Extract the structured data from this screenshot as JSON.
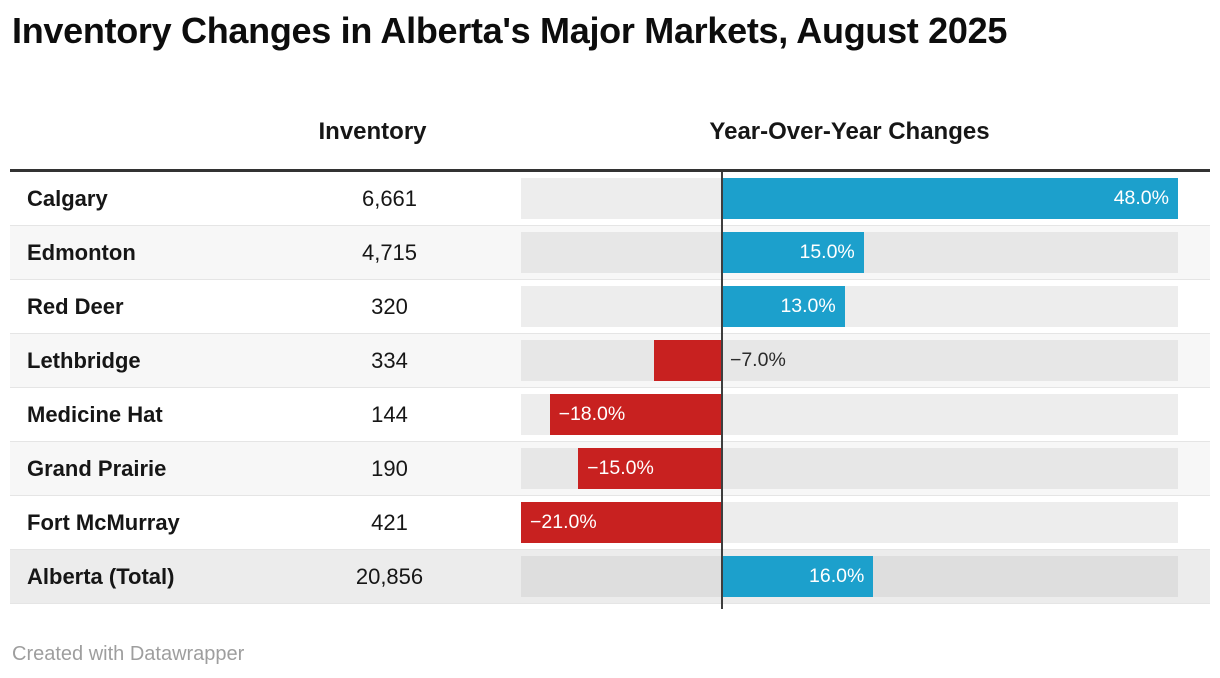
{
  "title": "Inventory Changes in Alberta's Major Markets, August 2025",
  "columns": {
    "inventory_header": "Inventory",
    "yoy_header": "Year-Over-Year Changes"
  },
  "footer": "Created with Datawrapper",
  "colors": {
    "positive_bar": "#1ca0cc",
    "negative_bar": "#c82120",
    "axis_line": "#3e3e3e",
    "track": "#ededed",
    "total_row_bg": "#ececec"
  },
  "rows": [
    {
      "name": "Calgary",
      "inventory": "6,661",
      "yoy": 48.0,
      "yoy_label": "48.0%"
    },
    {
      "name": "Edmonton",
      "inventory": "4,715",
      "yoy": 15.0,
      "yoy_label": "15.0%"
    },
    {
      "name": "Red Deer",
      "inventory": "320",
      "yoy": 13.0,
      "yoy_label": "13.0%"
    },
    {
      "name": "Lethbridge",
      "inventory": "334",
      "yoy": -7.0,
      "yoy_label": "−7.0%"
    },
    {
      "name": "Medicine Hat",
      "inventory": "144",
      "yoy": -18.0,
      "yoy_label": "−18.0%"
    },
    {
      "name": "Grand Prairie",
      "inventory": "190",
      "yoy": -15.0,
      "yoy_label": "−15.0%"
    },
    {
      "name": "Fort McMurray",
      "inventory": "421",
      "yoy": -21.0,
      "yoy_label": "−21.0%"
    },
    {
      "name": "Alberta (Total)",
      "inventory": "20,856",
      "yoy": 16.0,
      "yoy_label": "16.0%",
      "total": true
    }
  ],
  "chart_data": {
    "type": "bar",
    "title": "Inventory Changes in Alberta's Major Markets, August 2025",
    "categories": [
      "Calgary",
      "Edmonton",
      "Red Deer",
      "Lethbridge",
      "Medicine Hat",
      "Grand Prairie",
      "Fort McMurray",
      "Alberta (Total)"
    ],
    "series": [
      {
        "name": "Inventory",
        "values": [
          6661,
          4715,
          320,
          334,
          144,
          190,
          421,
          20856
        ]
      },
      {
        "name": "Year-Over-Year Changes (%)",
        "values": [
          48.0,
          15.0,
          13.0,
          -7.0,
          -18.0,
          -15.0,
          -21.0,
          16.0
        ]
      }
    ],
    "xlabel": "Year-Over-Year Changes",
    "ylabel": "",
    "xlim": [
      -21,
      48
    ],
    "grid": false,
    "legend": false,
    "orientation": "horizontal",
    "annotations": [
      "Created with Datawrapper"
    ]
  }
}
